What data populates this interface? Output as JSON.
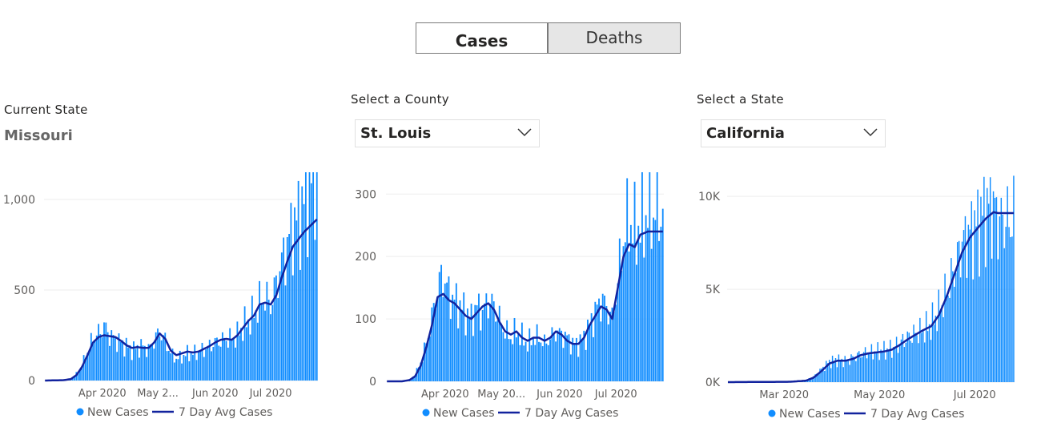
{
  "toggle": {
    "cases_label": "Cases",
    "deaths_label": "Deaths"
  },
  "panels": {
    "state_current": {
      "label": "Current State",
      "value": "Missouri"
    },
    "county_select": {
      "label": "Select a County",
      "value": "St. Louis"
    },
    "state_select": {
      "label": "Select a State",
      "value": "California"
    }
  },
  "colors": {
    "bars": "#118dff",
    "avg_line": "#12239e",
    "grid": "#eeeeee"
  },
  "chart_data": [
    {
      "type": "bar",
      "region": "Missouri",
      "x_start": "2020-03-01",
      "x_end": "2020-07-26",
      "xticks": [
        {
          "date": "2020-04-01",
          "label": "Apr 2020"
        },
        {
          "date": "2020-05-01",
          "label": "May 2..."
        },
        {
          "date": "2020-06-01",
          "label": "Jun 2020"
        },
        {
          "date": "2020-07-01",
          "label": "Jul 2020"
        }
      ],
      "yticks": [
        {
          "v": 0,
          "label": "0"
        },
        {
          "v": 500,
          "label": "500"
        },
        {
          "v": 1000,
          "label": "1,000"
        }
      ],
      "ylim": [
        0,
        1150
      ],
      "legend": [
        "New Cases",
        "7 Day Avg Cases"
      ],
      "series": [
        {
          "name": "New Cases",
          "key_values": [
            [
              0,
              0
            ],
            [
              10,
              2
            ],
            [
              14,
              10
            ],
            [
              17,
              35
            ],
            [
              20,
              80
            ],
            [
              23,
              160
            ],
            [
              26,
              230
            ],
            [
              29,
              260
            ],
            [
              32,
              300
            ],
            [
              35,
              250
            ],
            [
              38,
              230
            ],
            [
              41,
              210
            ],
            [
              44,
              190
            ],
            [
              47,
              170
            ],
            [
              50,
              180
            ],
            [
              53,
              190
            ],
            [
              56,
              170
            ],
            [
              59,
              220
            ],
            [
              62,
              270
            ],
            [
              65,
              220
            ],
            [
              68,
              150
            ],
            [
              71,
              120
            ],
            [
              74,
              130
            ],
            [
              77,
              150
            ],
            [
              80,
              150
            ],
            [
              83,
              160
            ],
            [
              86,
              170
            ],
            [
              89,
              190
            ],
            [
              92,
              210
            ],
            [
              95,
              220
            ],
            [
              98,
              230
            ],
            [
              101,
              230
            ],
            [
              104,
              250
            ],
            [
              107,
              300
            ],
            [
              110,
              330
            ],
            [
              113,
              370
            ],
            [
              116,
              430
            ],
            [
              119,
              460
            ],
            [
              122,
              420
            ],
            [
              125,
              530
            ],
            [
              128,
              650
            ],
            [
              131,
              750
            ],
            [
              134,
              850
            ],
            [
              137,
              900
            ],
            [
              140,
              980
            ],
            [
              143,
              1050
            ],
            [
              147,
              1140
            ]
          ]
        },
        {
          "name": "7 Day Avg Cases",
          "key_values": [
            [
              0,
              0
            ],
            [
              10,
              2
            ],
            [
              14,
              8
            ],
            [
              17,
              30
            ],
            [
              20,
              75
            ],
            [
              23,
              140
            ],
            [
              26,
              210
            ],
            [
              29,
              240
            ],
            [
              32,
              250
            ],
            [
              35,
              245
            ],
            [
              38,
              240
            ],
            [
              41,
              220
            ],
            [
              44,
              195
            ],
            [
              47,
              180
            ],
            [
              50,
              185
            ],
            [
              53,
              180
            ],
            [
              56,
              180
            ],
            [
              59,
              210
            ],
            [
              62,
              260
            ],
            [
              65,
              230
            ],
            [
              68,
              165
            ],
            [
              71,
              140
            ],
            [
              74,
              150
            ],
            [
              77,
              160
            ],
            [
              80,
              155
            ],
            [
              83,
              160
            ],
            [
              86,
              175
            ],
            [
              89,
              190
            ],
            [
              92,
              210
            ],
            [
              95,
              225
            ],
            [
              98,
              230
            ],
            [
              101,
              225
            ],
            [
              104,
              250
            ],
            [
              107,
              290
            ],
            [
              110,
              330
            ],
            [
              113,
              360
            ],
            [
              116,
              420
            ],
            [
              119,
              430
            ],
            [
              122,
              420
            ],
            [
              125,
              470
            ],
            [
              128,
              570
            ],
            [
              131,
              660
            ],
            [
              134,
              740
            ],
            [
              137,
              780
            ],
            [
              140,
              820
            ],
            [
              143,
              850
            ],
            [
              147,
              890
            ]
          ]
        }
      ]
    },
    {
      "type": "bar",
      "region": "St. Louis",
      "x_start": "2020-03-01",
      "x_end": "2020-07-26",
      "xticks": [
        {
          "date": "2020-04-01",
          "label": "Apr 2020"
        },
        {
          "date": "2020-05-01",
          "label": "May 20..."
        },
        {
          "date": "2020-06-01",
          "label": "Jun 2020"
        },
        {
          "date": "2020-07-01",
          "label": "Jul 2020"
        }
      ],
      "yticks": [
        {
          "v": 0,
          "label": "0"
        },
        {
          "v": 100,
          "label": "100"
        },
        {
          "v": 200,
          "label": "200"
        },
        {
          "v": 300,
          "label": "300"
        }
      ],
      "ylim": [
        0,
        335
      ],
      "legend": [
        "New Cases",
        "7 Day Avg Cases"
      ],
      "series": [
        {
          "name": "New Cases",
          "key_values": [
            [
              0,
              0
            ],
            [
              8,
              0
            ],
            [
              12,
              2
            ],
            [
              15,
              10
            ],
            [
              18,
              30
            ],
            [
              21,
              60
            ],
            [
              24,
              100
            ],
            [
              27,
              150
            ],
            [
              30,
              170
            ],
            [
              33,
              140
            ],
            [
              36,
              130
            ],
            [
              39,
              120
            ],
            [
              42,
              110
            ],
            [
              45,
              100
            ],
            [
              48,
              120
            ],
            [
              51,
              110
            ],
            [
              54,
              130
            ],
            [
              57,
              120
            ],
            [
              60,
              100
            ],
            [
              63,
              80
            ],
            [
              66,
              70
            ],
            [
              69,
              80
            ],
            [
              72,
              70
            ],
            [
              75,
              60
            ],
            [
              78,
              70
            ],
            [
              81,
              70
            ],
            [
              84,
              60
            ],
            [
              87,
              70
            ],
            [
              90,
              80
            ],
            [
              93,
              75
            ],
            [
              96,
              70
            ],
            [
              99,
              60
            ],
            [
              102,
              60
            ],
            [
              105,
              70
            ],
            [
              108,
              90
            ],
            [
              111,
              110
            ],
            [
              114,
              130
            ],
            [
              117,
              120
            ],
            [
              120,
              100
            ],
            [
              123,
              160
            ],
            [
              126,
              230
            ],
            [
              129,
              260
            ],
            [
              132,
              240
            ],
            [
              135,
              250
            ],
            [
              139,
              270
            ]
          ]
        },
        {
          "name": "7 Day Avg Cases",
          "key_values": [
            [
              0,
              0
            ],
            [
              8,
              0
            ],
            [
              12,
              2
            ],
            [
              15,
              8
            ],
            [
              18,
              25
            ],
            [
              21,
              55
            ],
            [
              24,
              90
            ],
            [
              27,
              135
            ],
            [
              30,
              140
            ],
            [
              33,
              130
            ],
            [
              36,
              125
            ],
            [
              39,
              115
            ],
            [
              42,
              105
            ],
            [
              45,
              100
            ],
            [
              48,
              110
            ],
            [
              51,
              120
            ],
            [
              54,
              125
            ],
            [
              57,
              115
            ],
            [
              60,
              95
            ],
            [
              63,
              80
            ],
            [
              66,
              75
            ],
            [
              69,
              80
            ],
            [
              72,
              70
            ],
            [
              75,
              65
            ],
            [
              78,
              70
            ],
            [
              81,
              70
            ],
            [
              84,
              65
            ],
            [
              87,
              70
            ],
            [
              90,
              80
            ],
            [
              93,
              75
            ],
            [
              96,
              65
            ],
            [
              99,
              60
            ],
            [
              102,
              60
            ],
            [
              105,
              70
            ],
            [
              108,
              90
            ],
            [
              111,
              105
            ],
            [
              114,
              120
            ],
            [
              117,
              115
            ],
            [
              120,
              100
            ],
            [
              123,
              150
            ],
            [
              126,
              200
            ],
            [
              129,
              220
            ],
            [
              132,
              215
            ],
            [
              135,
              235
            ],
            [
              139,
              240
            ]
          ]
        }
      ]
    },
    {
      "type": "bar",
      "region": "California",
      "x_start": "2020-01-25",
      "x_end": "2020-07-26",
      "xticks": [
        {
          "date": "2020-03-01",
          "label": "Mar 2020"
        },
        {
          "date": "2020-05-01",
          "label": "May 2020"
        },
        {
          "date": "2020-07-01",
          "label": "Jul 2020"
        }
      ],
      "yticks": [
        {
          "v": 0,
          "label": "0K"
        },
        {
          "v": 5000,
          "label": "5K"
        },
        {
          "v": 10000,
          "label": "10K"
        }
      ],
      "ylim": [
        0,
        11300
      ],
      "legend": [
        "New Cases",
        "7 Day Avg Cases"
      ],
      "series": [
        {
          "name": "New Cases",
          "key_values": [
            [
              0,
              0
            ],
            [
              40,
              20
            ],
            [
              50,
              100
            ],
            [
              55,
              300
            ],
            [
              60,
              700
            ],
            [
              65,
              1100
            ],
            [
              70,
              1200
            ],
            [
              75,
              1150
            ],
            [
              80,
              1300
            ],
            [
              85,
              1500
            ],
            [
              90,
              1600
            ],
            [
              95,
              1650
            ],
            [
              100,
              1700
            ],
            [
              105,
              1800
            ],
            [
              110,
              2100
            ],
            [
              115,
              2400
            ],
            [
              120,
              2600
            ],
            [
              125,
              2800
            ],
            [
              130,
              3100
            ],
            [
              135,
              3800
            ],
            [
              140,
              4800
            ],
            [
              145,
              6000
            ],
            [
              150,
              7500
            ],
            [
              155,
              8000
            ],
            [
              160,
              8500
            ],
            [
              165,
              9300
            ],
            [
              170,
              9500
            ],
            [
              173,
              8700
            ]
          ]
        },
        {
          "name": "7 Day Avg Cases",
          "key_values": [
            [
              0,
              0
            ],
            [
              40,
              20
            ],
            [
              50,
              80
            ],
            [
              55,
              250
            ],
            [
              60,
              600
            ],
            [
              65,
              1000
            ],
            [
              70,
              1150
            ],
            [
              75,
              1150
            ],
            [
              80,
              1250
            ],
            [
              85,
              1450
            ],
            [
              90,
              1550
            ],
            [
              95,
              1600
            ],
            [
              100,
              1650
            ],
            [
              105,
              1750
            ],
            [
              110,
              2000
            ],
            [
              115,
              2300
            ],
            [
              120,
              2550
            ],
            [
              125,
              2800
            ],
            [
              130,
              3000
            ],
            [
              135,
              3600
            ],
            [
              140,
              4600
            ],
            [
              145,
              5800
            ],
            [
              150,
              7000
            ],
            [
              155,
              7800
            ],
            [
              160,
              8300
            ],
            [
              165,
              8800
            ],
            [
              170,
              9150
            ],
            [
              173,
              9100
            ]
          ]
        }
      ]
    }
  ]
}
